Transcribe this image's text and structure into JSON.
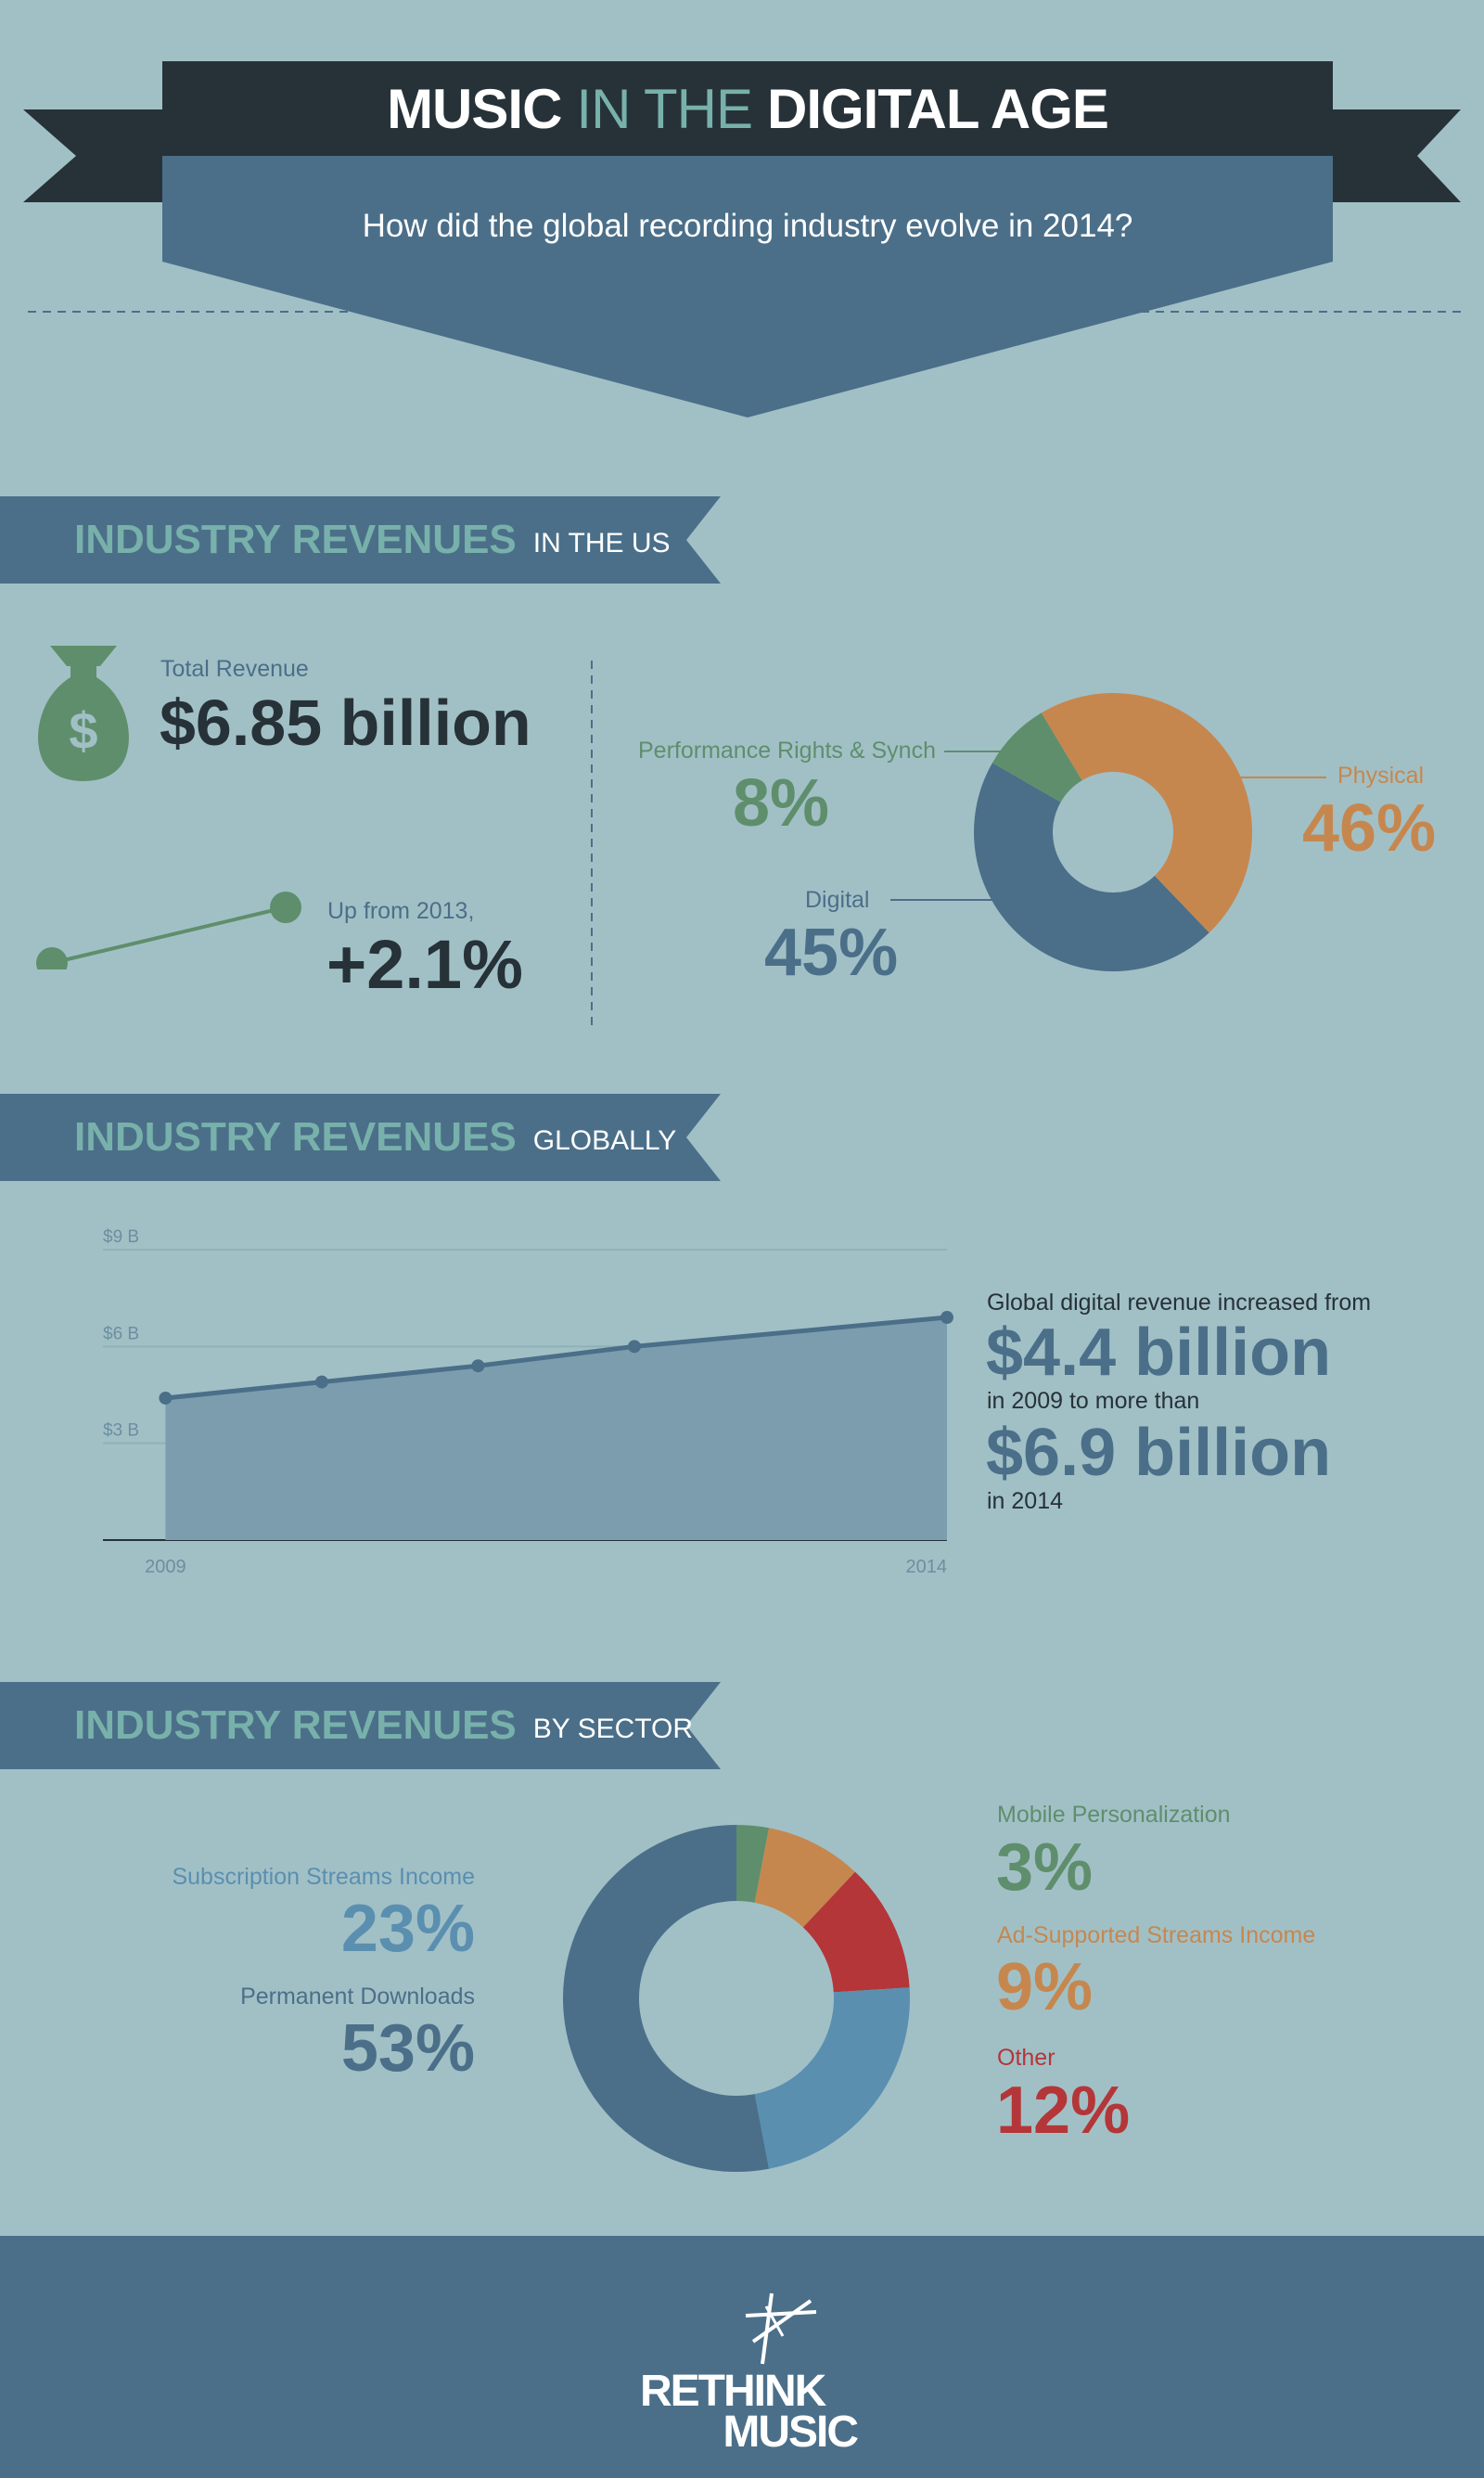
{
  "colors": {
    "background": "#a1c0c6",
    "dark": "#263238",
    "slate": "#4b6f89",
    "teal": "#78b1ab",
    "green": "#5f8e6c",
    "orange": "#c6874f",
    "red": "#b43638",
    "lightblue": "#5a8fb0",
    "area": "#7b9dad"
  },
  "header": {
    "title_part1": "MUSIC",
    "title_part2": "IN THE",
    "title_part3": "DIGITAL AGE",
    "subtitle": "How did the global recording industry evolve in 2014?"
  },
  "section_us": {
    "title": "INDUSTRY REVENUES",
    "suffix": "IN THE US",
    "total_label": "Total Revenue",
    "total_value": "$6.85 billion",
    "growth_label": "Up from 2013,",
    "growth_value": "+2.1%",
    "icon": "money-bag-icon",
    "trend_icon": "trend-line-icon"
  },
  "section_global": {
    "title": "INDUSTRY REVENUES",
    "suffix": "GLOBALLY",
    "note_line1": "Global digital revenue increased from",
    "value1": "$4.4 billion",
    "note_line2": "in 2009 to more than",
    "value2": "$6.9 billion",
    "note_line3": "in 2014"
  },
  "section_sector": {
    "title": "INDUSTRY REVENUES",
    "suffix": "BY SECTOR"
  },
  "footer": {
    "logo_line1": "RETHINK",
    "logo_line2": "MUSIC",
    "logo_icon": "rethink-music-logo-icon"
  },
  "chart_data": [
    {
      "type": "pie",
      "title": "",
      "donut": true,
      "slices": [
        {
          "label": "Physical",
          "display": "46%",
          "value": 46,
          "color": "#c6874f"
        },
        {
          "label": "Digital",
          "display": "45%",
          "value": 45,
          "color": "#4b6f89"
        },
        {
          "label": "Performance Rights & Synch",
          "display": "8%",
          "value": 8,
          "color": "#5f8e6c"
        }
      ]
    },
    {
      "type": "area",
      "title": "",
      "x": [
        2009,
        2010,
        2011,
        2012,
        2013,
        2014
      ],
      "x_tick_labels": [
        "2009",
        "2014"
      ],
      "y": [
        null,
        null,
        null,
        null,
        null,
        null
      ],
      "points_x": [
        2009,
        2010,
        2011,
        2012,
        2014
      ],
      "points_y": [
        4.4,
        4.9,
        5.4,
        6.0,
        6.9
      ],
      "y_ticks": [
        {
          "value": 3,
          "label": "$3 B"
        },
        {
          "value": 6,
          "label": "$6 B"
        },
        {
          "value": 9,
          "label": "$9 B"
        }
      ],
      "ylim": [
        0,
        9
      ],
      "xlim": [
        2008.6,
        2014
      ],
      "grid": true,
      "color": "#4b6f89",
      "fill": "#7b9dad"
    },
    {
      "type": "pie",
      "title": "",
      "donut": true,
      "slices": [
        {
          "label": "Mobile Personalization",
          "display": "3%",
          "value": 3,
          "color": "#5f8e6c"
        },
        {
          "label": "Ad-Supported Streams Income",
          "display": "9%",
          "value": 9,
          "color": "#c6874f"
        },
        {
          "label": "Other",
          "display": "12%",
          "value": 12,
          "color": "#b43638"
        },
        {
          "label": "Subscription Streams Income",
          "display": "23%",
          "value": 23,
          "color": "#5a8fb0"
        },
        {
          "label": "Permanent Downloads",
          "display": "53%",
          "value": 53,
          "color": "#4b6f89"
        }
      ]
    }
  ]
}
